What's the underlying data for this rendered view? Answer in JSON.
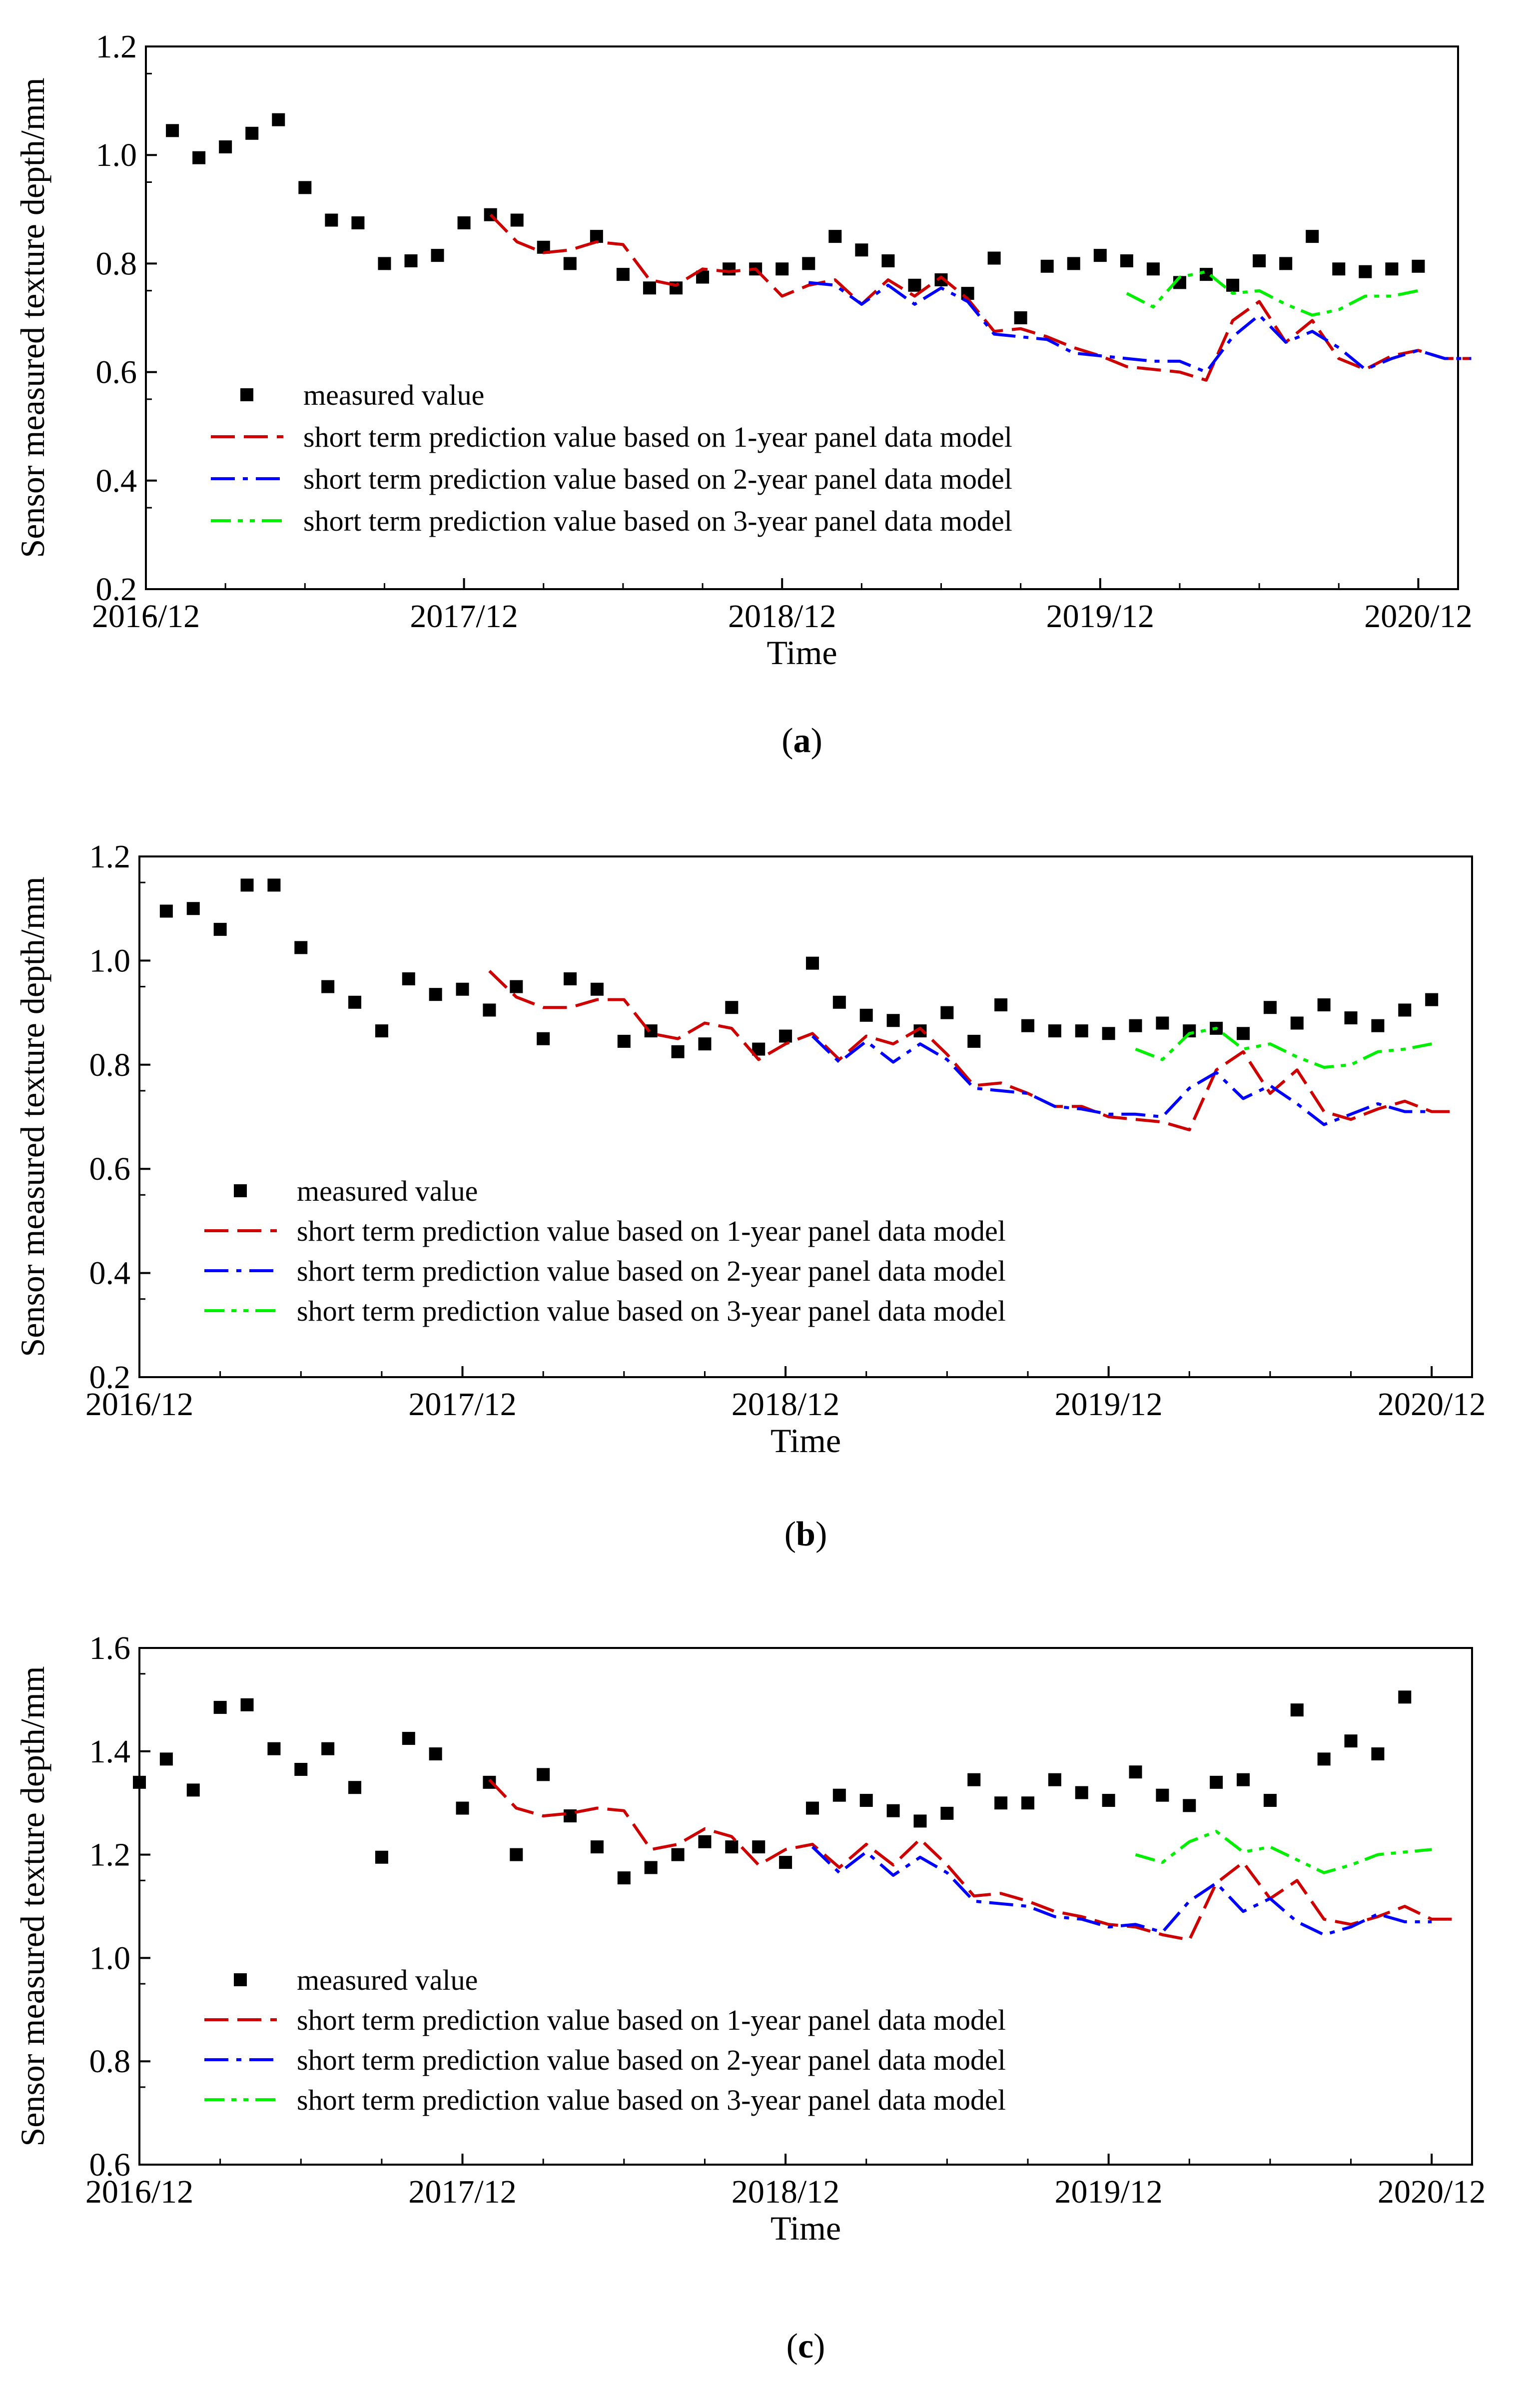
{
  "figure": {
    "colors": {
      "measured": "#000000",
      "pred_1y": "#cc0000",
      "pred_2y": "#0000ff",
      "pred_3y": "#00ee00"
    }
  },
  "chart_data": [
    {
      "type": "scatter",
      "panel_label": "a",
      "xlabel": "Time",
      "ylabel": "Sensor measured texture depth/mm",
      "ylim": [
        0.2,
        1.2
      ],
      "yticks": [
        "0.2",
        "0.4",
        "0.6",
        "0.8",
        "1.0",
        "1.2"
      ],
      "xlim": [
        0,
        49.5
      ],
      "xticks": [
        {
          "label": "2016/12",
          "value": 0
        },
        {
          "label": "2017/12",
          "value": 12
        },
        {
          "label": "2018/12",
          "value": 24
        },
        {
          "label": "2019/12",
          "value": 36
        },
        {
          "label": "2020/12",
          "value": 48
        }
      ],
      "legend": {
        "position": "lower-left",
        "entries": [
          "measured value",
          "short term prediction value based on 1-year panel data model",
          "short term prediction value based on 2-year panel data model",
          "short term prediction value based on 3-year panel data model"
        ]
      },
      "series": [
        {
          "name": "measured value",
          "style": "markers",
          "x_start": 1,
          "values": [
            1.045,
            0.995,
            1.015,
            1.04,
            1.065,
            0.94,
            0.88,
            0.875,
            0.8,
            0.805,
            0.815,
            0.875,
            0.89,
            0.88,
            0.83,
            0.8,
            0.85,
            0.78,
            0.755,
            0.755,
            0.775,
            0.79,
            0.79,
            0.79,
            0.8,
            0.85,
            0.825,
            0.805,
            0.76,
            0.77,
            0.745,
            0.81,
            0.7,
            0.795,
            0.8,
            0.815,
            0.805,
            0.79,
            0.765,
            0.78,
            0.76,
            0.805,
            0.8,
            0.85,
            0.79,
            0.785,
            0.79,
            0.795
          ]
        },
        {
          "name": "short term prediction value based on 1-year panel data model",
          "style": "dashed",
          "x_start": 13,
          "values": [
            0.89,
            0.84,
            0.82,
            0.825,
            0.84,
            0.835,
            0.77,
            0.76,
            0.79,
            0.785,
            0.79,
            0.74,
            0.76,
            0.77,
            0.725,
            0.77,
            0.74,
            0.775,
            0.735,
            0.675,
            0.68,
            0.665,
            0.645,
            0.63,
            0.61,
            0.605,
            0.6,
            0.585,
            0.695,
            0.73,
            0.655,
            0.695,
            0.625,
            0.605,
            0.63,
            0.64,
            0.625,
            0.625
          ]
        },
        {
          "name": "short term prediction value based on 2-year panel data model",
          "style": "dash-dot",
          "x_start": 25,
          "values": [
            0.765,
            0.76,
            0.725,
            0.76,
            0.725,
            0.755,
            0.73,
            0.67,
            0.665,
            0.66,
            0.635,
            0.63,
            0.625,
            0.62,
            0.62,
            0.6,
            0.665,
            0.705,
            0.655,
            0.675,
            0.645,
            0.605,
            0.625,
            0.64,
            0.625,
            0.625
          ]
        },
        {
          "name": "short term prediction value based on 3-year panel data model",
          "style": "dash-dot-dot",
          "x_start": 37,
          "values": [
            0.745,
            0.72,
            0.775,
            0.785,
            0.745,
            0.75,
            0.725,
            0.705,
            0.715,
            0.74,
            0.74,
            0.75
          ]
        }
      ]
    },
    {
      "type": "scatter",
      "panel_label": "b",
      "xlabel": "Time",
      "ylabel": "Sensor measured texture depth/mm",
      "ylim": [
        0.2,
        1.2
      ],
      "yticks": [
        "0.2",
        "0.4",
        "0.6",
        "0.8",
        "1.0",
        "1.2"
      ],
      "xlim": [
        0,
        49.5
      ],
      "xticks": [
        {
          "label": "2016/12",
          "value": 0
        },
        {
          "label": "2017/12",
          "value": 12
        },
        {
          "label": "2018/12",
          "value": 24
        },
        {
          "label": "2019/12",
          "value": 36
        },
        {
          "label": "2020/12",
          "value": 48
        }
      ],
      "legend": {
        "position": "lower-left",
        "entries": [
          "measured value",
          "short term prediction value based on 1-year panel data model",
          "short term prediction value based on 2-year panel data model",
          "short term prediction value based on 3-year panel data model"
        ]
      },
      "series": [
        {
          "name": "measured value",
          "style": "markers",
          "x_start": 1,
          "values": [
            1.095,
            1.1,
            1.06,
            1.145,
            1.145,
            1.025,
            0.95,
            0.92,
            0.865,
            0.965,
            0.935,
            0.945,
            0.905,
            0.95,
            0.85,
            0.965,
            0.945,
            0.845,
            0.865,
            0.825,
            0.84,
            0.91,
            0.83,
            0.855,
            0.995,
            0.92,
            0.895,
            0.885,
            0.865,
            0.9,
            0.845,
            0.915,
            0.875,
            0.865,
            0.865,
            0.86,
            0.875,
            0.88,
            0.865,
            0.87,
            0.86,
            0.91,
            0.88,
            0.915,
            0.89,
            0.875,
            0.905,
            0.925
          ]
        },
        {
          "name": "short term prediction value based on 1-year panel data model",
          "style": "dashed",
          "x_start": 13,
          "values": [
            0.98,
            0.93,
            0.91,
            0.91,
            0.925,
            0.925,
            0.86,
            0.85,
            0.88,
            0.87,
            0.81,
            0.84,
            0.86,
            0.81,
            0.855,
            0.84,
            0.87,
            0.82,
            0.76,
            0.765,
            0.745,
            0.72,
            0.72,
            0.7,
            0.695,
            0.69,
            0.675,
            0.79,
            0.825,
            0.745,
            0.79,
            0.71,
            0.695,
            0.715,
            0.73,
            0.71,
            0.71
          ]
        },
        {
          "name": "short term prediction value based on 2-year panel data model",
          "style": "dash-dot",
          "x_start": 25,
          "values": [
            0.855,
            0.805,
            0.845,
            0.805,
            0.84,
            0.81,
            0.755,
            0.75,
            0.745,
            0.72,
            0.715,
            0.705,
            0.705,
            0.7,
            0.755,
            0.785,
            0.735,
            0.76,
            0.725,
            0.685,
            0.705,
            0.725,
            0.71,
            0.71
          ]
        },
        {
          "name": "short term prediction value based on 3-year panel data model",
          "style": "dash-dot-dot",
          "x_start": 37,
          "values": [
            0.83,
            0.81,
            0.86,
            0.87,
            0.83,
            0.84,
            0.815,
            0.795,
            0.8,
            0.825,
            0.83,
            0.84
          ]
        }
      ]
    },
    {
      "type": "scatter",
      "panel_label": "c",
      "xlabel": "Time",
      "ylabel": "Sensor measured texture depth/mm",
      "ylim": [
        0.6,
        1.6
      ],
      "yticks": [
        "0.6",
        "0.8",
        "1.0",
        "1.2",
        "1.4",
        "1.6"
      ],
      "xlim": [
        0,
        49.5
      ],
      "xticks": [
        {
          "label": "2016/12",
          "value": 0
        },
        {
          "label": "2017/12",
          "value": 12
        },
        {
          "label": "2018/12",
          "value": 24
        },
        {
          "label": "2019/12",
          "value": 36
        },
        {
          "label": "2020/12",
          "value": 48
        }
      ],
      "legend": {
        "position": "lower-left",
        "entries": [
          "measured value",
          "short term prediction value based on 1-year panel data model",
          "short term prediction value based on 2-year panel data model",
          "short term prediction value based on 3-year panel data model"
        ]
      },
      "series": [
        {
          "name": "measured value",
          "style": "markers",
          "x_start": 0,
          "values": [
            1.34,
            1.385,
            1.325,
            1.485,
            1.49,
            1.405,
            1.365,
            1.405,
            1.33,
            1.195,
            1.425,
            1.395,
            1.29,
            1.34,
            1.2,
            1.355,
            1.275,
            1.215,
            1.155,
            1.175,
            1.2,
            1.225,
            1.215,
            1.215,
            1.185,
            1.29,
            1.315,
            1.305,
            1.285,
            1.265,
            1.28,
            1.345,
            1.3,
            1.3,
            1.345,
            1.32,
            1.305,
            1.36,
            1.315,
            1.295,
            1.34,
            1.345,
            1.305,
            1.48,
            1.385,
            1.42,
            1.395,
            1.505
          ]
        },
        {
          "name": "short term prediction value based on 1-year panel data model",
          "style": "dashed",
          "x_start": 13,
          "values": [
            1.345,
            1.29,
            1.275,
            1.28,
            1.29,
            1.285,
            1.21,
            1.22,
            1.25,
            1.235,
            1.18,
            1.21,
            1.22,
            1.175,
            1.22,
            1.18,
            1.23,
            1.18,
            1.12,
            1.125,
            1.11,
            1.09,
            1.08,
            1.065,
            1.06,
            1.045,
            1.035,
            1.145,
            1.185,
            1.115,
            1.15,
            1.075,
            1.065,
            1.08,
            1.1,
            1.075,
            1.075
          ]
        },
        {
          "name": "short term prediction value based on 2-year panel data model",
          "style": "dash-dot",
          "x_start": 25,
          "values": [
            1.215,
            1.165,
            1.205,
            1.16,
            1.195,
            1.165,
            1.11,
            1.105,
            1.1,
            1.08,
            1.075,
            1.06,
            1.065,
            1.05,
            1.11,
            1.145,
            1.09,
            1.115,
            1.07,
            1.045,
            1.06,
            1.085,
            1.07,
            1.07
          ]
        },
        {
          "name": "short term prediction value based on 3-year panel data model",
          "style": "dash-dot-dot",
          "x_start": 37,
          "values": [
            1.2,
            1.185,
            1.225,
            1.245,
            1.205,
            1.215,
            1.19,
            1.165,
            1.18,
            1.2,
            1.205,
            1.21
          ]
        }
      ]
    }
  ]
}
